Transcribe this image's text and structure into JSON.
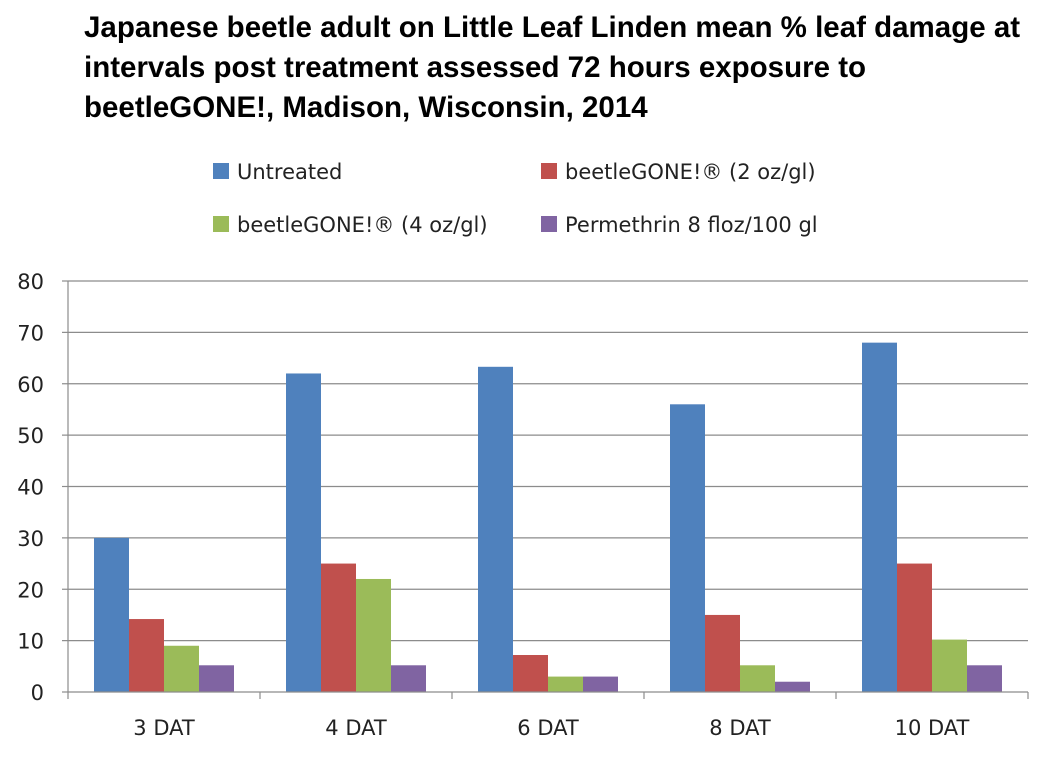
{
  "chart_data": {
    "type": "bar",
    "title": "Japanese beetle adult on Little Leaf Linden mean % leaf damage at intervals post treatment assessed 72 hours exposure to beetleGONE!, Madison, Wisconsin, 2014",
    "xlabel": "",
    "ylabel": "",
    "categories": [
      "3 DAT",
      "4 DAT",
      "6 DAT",
      "8 DAT",
      "10 DAT"
    ],
    "series": [
      {
        "name": "Untreated",
        "color": "#4F81BD",
        "values": [
          30,
          62,
          63.3,
          56,
          68
        ]
      },
      {
        "name": "beetleGONE!® (2 oz/gl)",
        "color": "#C0504D",
        "values": [
          14.2,
          25,
          7.2,
          15,
          25
        ]
      },
      {
        "name": "beetleGONE!® (4 oz/gl)",
        "color": "#9BBB59",
        "values": [
          9,
          22,
          3,
          5.2,
          10.2
        ]
      },
      {
        "name": "Permethrin 8 floz/100 gl",
        "color": "#8064A2",
        "values": [
          5.2,
          5.2,
          3,
          2,
          5.2
        ]
      }
    ],
    "ylim": [
      0,
      80
    ],
    "yticks": [
      "0",
      "10",
      "20",
      "30",
      "40",
      "50",
      "60",
      "70",
      "80"
    ],
    "grid": true,
    "legend_position": "top"
  }
}
